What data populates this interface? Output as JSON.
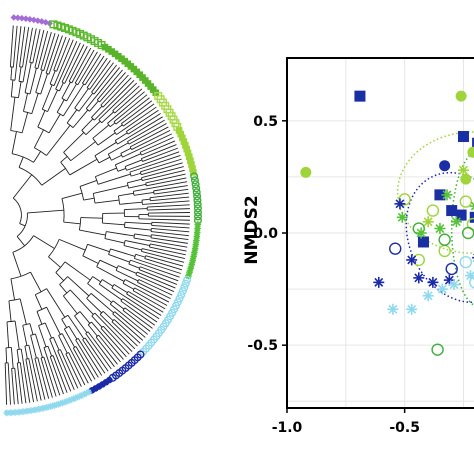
{
  "chart_data": [
    {
      "type": "dendrogram",
      "layout": "circular",
      "tip_marker_groups": [
        {
          "marker": "diamond",
          "color": "#a36cd6"
        },
        {
          "marker": "open-square",
          "color": "#5bb82e"
        },
        {
          "marker": "filled-square",
          "color": "#59b42a"
        },
        {
          "marker": "open-square",
          "color": "#a8d94a"
        },
        {
          "marker": "filled-square",
          "color": "#9fd43a"
        },
        {
          "marker": "open-circle",
          "color": "#3fae3c"
        },
        {
          "marker": "asterisk",
          "color": "#56c23a"
        },
        {
          "marker": "open-circle",
          "color": "#8fd9ee"
        },
        {
          "marker": "open-circle",
          "color": "#1b2aa8"
        },
        {
          "marker": "filled-circle",
          "color": "#1b2aa8"
        },
        {
          "marker": "asterisk",
          "color": "#8fd9ee"
        }
      ]
    },
    {
      "type": "scatter",
      "xlabel": "",
      "ylabel": "NMDS2",
      "xlim": [
        -1.0,
        -0.15
      ],
      "ylim": [
        -0.78,
        0.78
      ],
      "xticks": [
        -1.0,
        -0.5
      ],
      "xtick_labels": [
        "-1.0",
        "-0.5"
      ],
      "yticks": [
        -0.5,
        0.0,
        0.5
      ],
      "ytick_labels": [
        "-0.5",
        "0.0",
        "0.5"
      ],
      "grid": true,
      "legend": "none",
      "series": [
        {
          "marker": "filled-square",
          "color": "#1a2fa3",
          "points": [
            [
              -0.69,
              0.61
            ],
            [
              -0.25,
              0.43
            ],
            [
              -0.19,
              0.4
            ],
            [
              -0.35,
              0.17
            ],
            [
              -0.3,
              0.1
            ],
            [
              -0.26,
              0.08
            ],
            [
              -0.2,
              0.07
            ],
            [
              -0.18,
              0.09
            ],
            [
              -0.42,
              -0.04
            ]
          ]
        },
        {
          "marker": "filled-circle",
          "color": "#1a2fa3",
          "points": [
            [
              -0.33,
              0.3
            ],
            [
              -0.18,
              0.2
            ]
          ]
        },
        {
          "marker": "filled-circle",
          "color": "#9fd43a",
          "points": [
            [
              -0.92,
              0.27
            ],
            [
              -0.26,
              0.61
            ],
            [
              -0.21,
              0.36
            ],
            [
              -0.24,
              0.24
            ],
            [
              -0.17,
              0.15
            ]
          ]
        },
        {
          "marker": "filled-circle",
          "color": "#3fae3c",
          "points": [
            [
              -0.15,
              0.3
            ]
          ]
        },
        {
          "marker": "open-circle",
          "color": "#9fd43a",
          "points": [
            [
              -0.5,
              0.15
            ],
            [
              -0.38,
              0.1
            ],
            [
              -0.24,
              0.14
            ],
            [
              -0.18,
              0.11
            ],
            [
              -0.21,
              0.04
            ],
            [
              -0.44,
              -0.12
            ],
            [
              -0.33,
              -0.08
            ]
          ]
        },
        {
          "marker": "open-circle",
          "color": "#3fae3c",
          "points": [
            [
              -0.44,
              0.02
            ],
            [
              -0.33,
              -0.03
            ],
            [
              -0.23,
              0.0
            ],
            [
              -0.36,
              -0.52
            ],
            [
              -0.17,
              -0.32
            ]
          ]
        },
        {
          "marker": "open-circle",
          "color": "#1a2fa3",
          "points": [
            [
              -0.54,
              -0.07
            ],
            [
              -0.17,
              -0.2
            ],
            [
              -0.3,
              -0.16
            ]
          ]
        },
        {
          "marker": "open-circle",
          "color": "#8fd9ee",
          "points": [
            [
              -0.24,
              -0.13
            ],
            [
              -0.2,
              -0.22
            ],
            [
              -0.17,
              -0.05
            ]
          ]
        },
        {
          "marker": "asterisk",
          "color": "#56c23a",
          "points": [
            [
              -0.51,
              0.07
            ],
            [
              -0.43,
              0.0
            ],
            [
              -0.35,
              0.02
            ],
            [
              -0.28,
              0.05
            ],
            [
              -0.2,
              0.12
            ],
            [
              -0.32,
              0.17
            ]
          ]
        },
        {
          "marker": "asterisk",
          "color": "#9fd43a",
          "points": [
            [
              -0.4,
              0.05
            ],
            [
              -0.25,
              0.28
            ]
          ]
        },
        {
          "marker": "asterisk",
          "color": "#1b2aa8",
          "points": [
            [
              -0.52,
              0.13
            ],
            [
              -0.61,
              -0.22
            ],
            [
              -0.47,
              -0.12
            ],
            [
              -0.44,
              -0.2
            ],
            [
              -0.38,
              -0.22
            ],
            [
              -0.31,
              -0.21
            ],
            [
              -0.19,
              -0.11
            ],
            [
              -0.18,
              -0.18
            ]
          ]
        },
        {
          "marker": "asterisk",
          "color": "#8fd9ee",
          "points": [
            [
              -0.55,
              -0.34
            ],
            [
              -0.47,
              -0.34
            ],
            [
              -0.4,
              -0.28
            ],
            [
              -0.34,
              -0.25
            ],
            [
              -0.29,
              -0.23
            ],
            [
              -0.22,
              -0.19
            ]
          ]
        }
      ],
      "ellipses": [
        {
          "style": "dotted",
          "color": "#1b2aa8",
          "center": [
            -0.26,
            -0.02
          ],
          "radii": [
            0.22,
            0.3
          ],
          "angle": -25
        },
        {
          "style": "dotted",
          "color": "#9fd43a",
          "center": [
            -0.21,
            0.18
          ],
          "radii": [
            0.32,
            0.27
          ],
          "angle": 0
        },
        {
          "style": "dotted",
          "color": "#3fae3c",
          "center": [
            -0.18,
            0.02
          ],
          "radii": [
            0.12,
            0.35
          ],
          "angle": 0
        }
      ]
    }
  ]
}
